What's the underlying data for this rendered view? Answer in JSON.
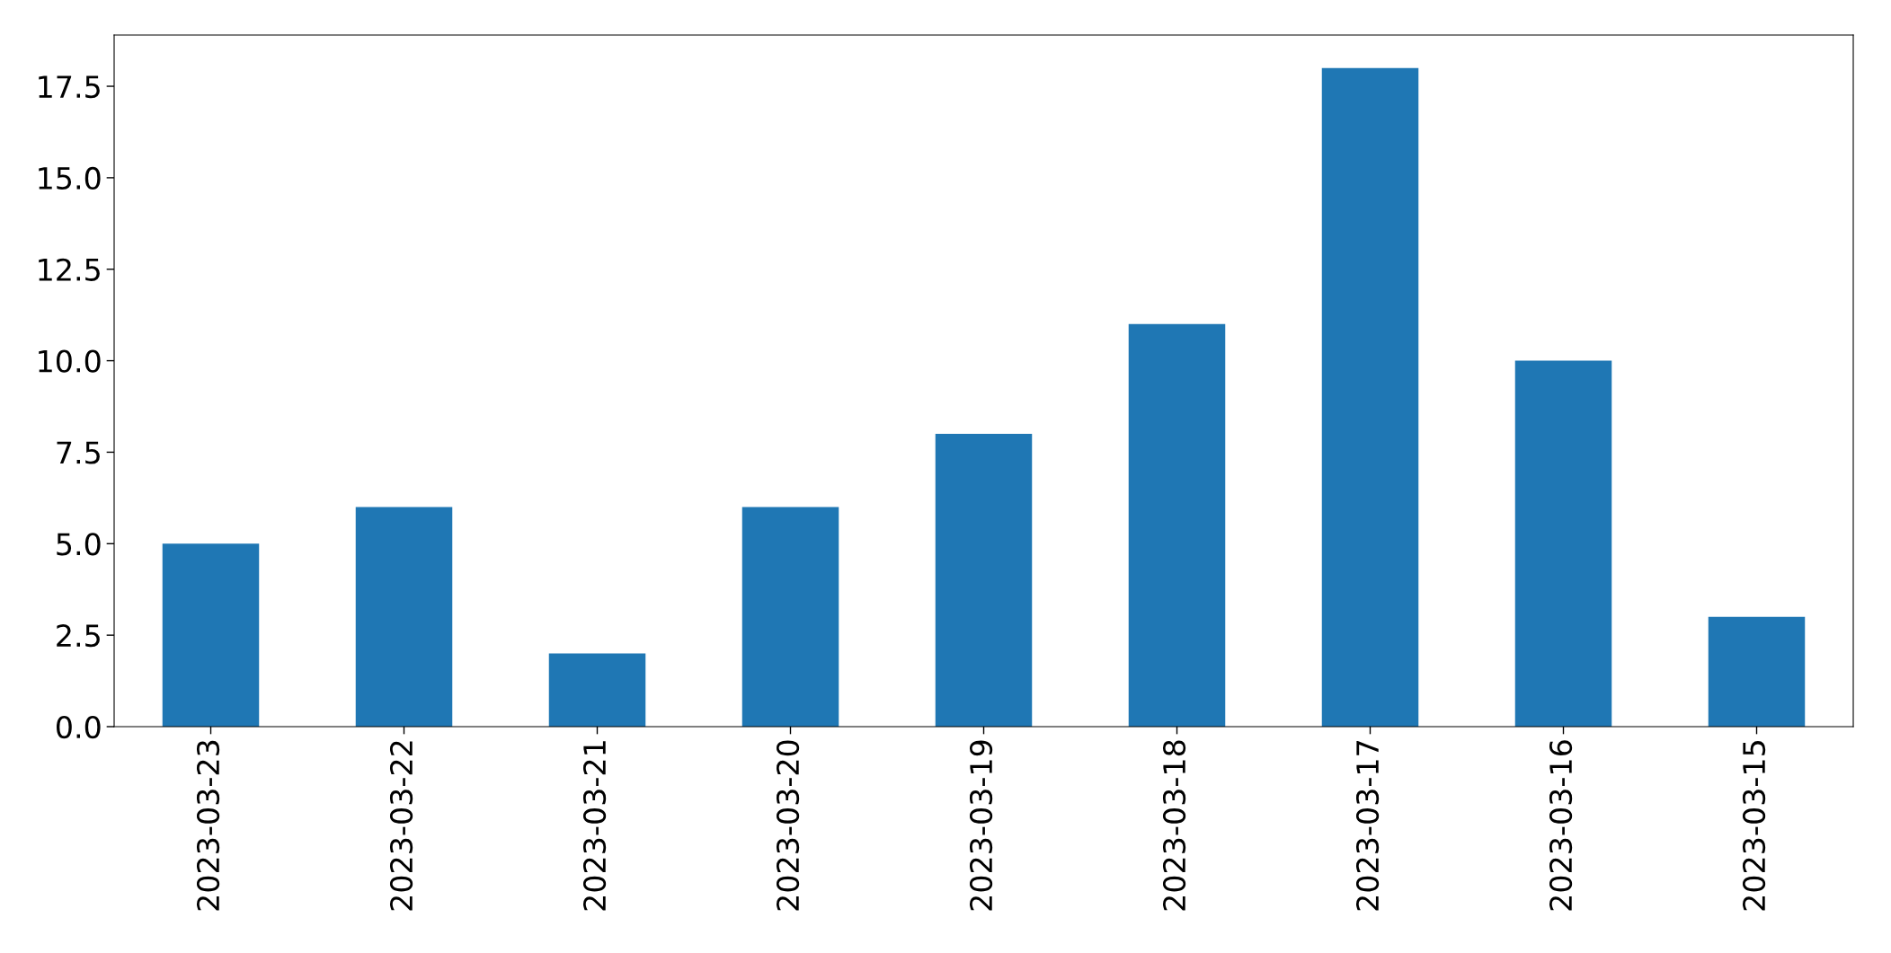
{
  "chart_data": {
    "type": "bar",
    "categories": [
      "2023-03-23",
      "2023-03-22",
      "2023-03-21",
      "2023-03-20",
      "2023-03-19",
      "2023-03-18",
      "2023-03-17",
      "2023-03-16",
      "2023-03-15"
    ],
    "values": [
      5,
      6,
      2,
      6,
      8,
      11,
      18,
      10,
      3
    ],
    "color": "#1f77b4",
    "ylim": [
      0,
      18.9
    ],
    "yticks": [
      {
        "value": 0,
        "label": "0.0"
      },
      2.5,
      {
        "value": 5,
        "label": "5.0"
      },
      7.5,
      {
        "value": 10,
        "label": "10.0"
      },
      12.5,
      {
        "value": 15,
        "label": "15.0"
      },
      17.5
    ],
    "grid": false,
    "legend": false
  }
}
